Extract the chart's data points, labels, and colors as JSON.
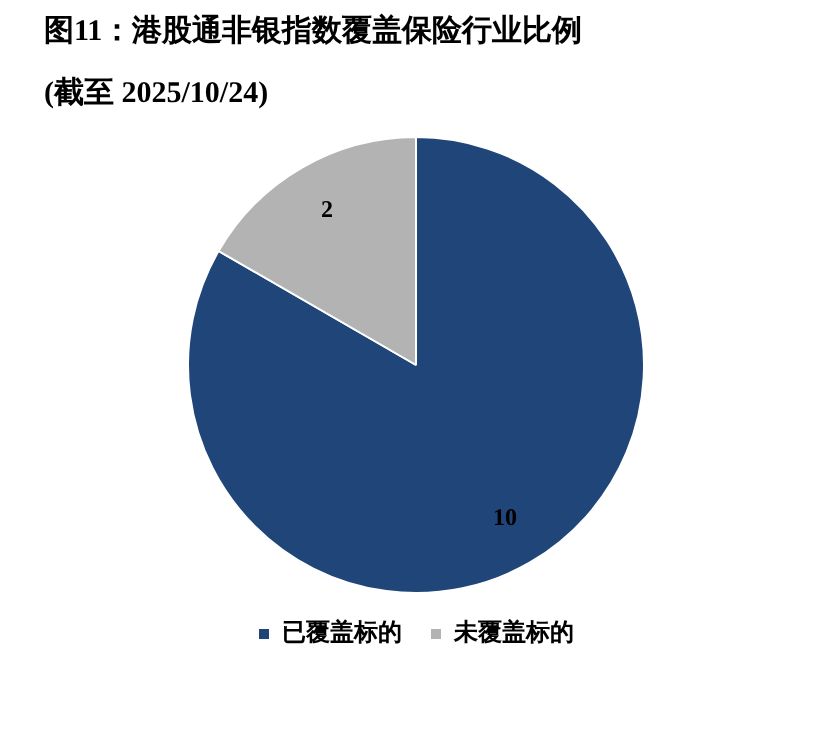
{
  "chart_data": {
    "type": "pie",
    "title": "图11：港股通非银指数覆盖保险行业比例",
    "subtitle": "(截至 2025/10/24)",
    "categories": [
      "已覆盖标的",
      "未覆盖标的"
    ],
    "values": [
      10,
      2
    ],
    "colors": [
      "#1f4579",
      "#b3b3b3"
    ],
    "data_labels": true,
    "legend": "bottom"
  }
}
